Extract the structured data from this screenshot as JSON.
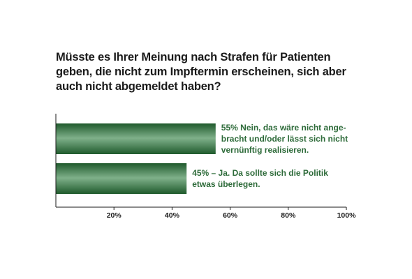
{
  "chart_data": {
    "type": "bar",
    "orientation": "horizontal",
    "title": "Müsste es Ihrer Meinung nach Strafen für Patienten\ngeben, die nicht zum Impftermin erscheinen, sich aber\nauch nicht abgemeldet haben?",
    "categories": [
      "55% Nein, das wäre nicht ange-\nbracht und/oder lässt sich nicht\nvernünftig realisieren.",
      "45% – Ja. Da sollte sich die Politik\netwas überlegen."
    ],
    "values": [
      55,
      45
    ],
    "xlim": [
      0,
      100
    ],
    "xticks": [
      20,
      40,
      60,
      80,
      100
    ],
    "xtick_labels": [
      "20%",
      "40%",
      "60%",
      "80%",
      "100%"
    ],
    "grid": false,
    "colors": {
      "bar_dark": "#1f5a2c",
      "bar_light": "#7fb08a",
      "label": "#2e6b3a",
      "axis": "#1a1a1a"
    }
  }
}
